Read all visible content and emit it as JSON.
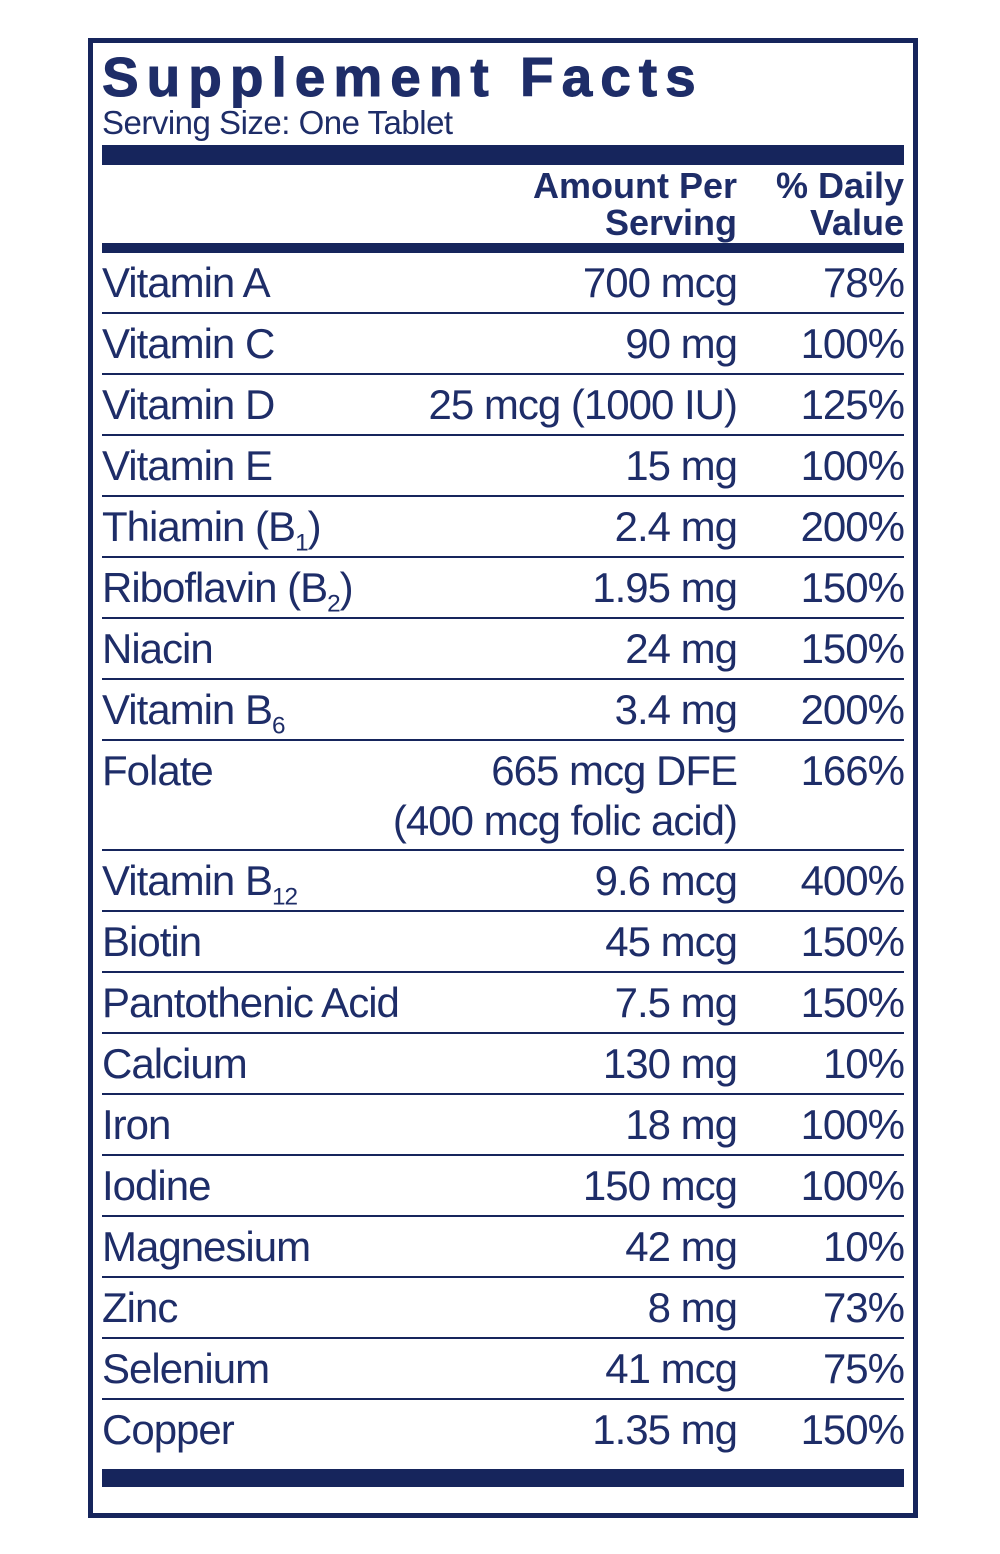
{
  "colors": {
    "navy": "#16255c",
    "text": "#1e2d68",
    "background": "#ffffff"
  },
  "label": {
    "title": "Supplement Facts",
    "serving_size": "Serving Size: One Tablet",
    "col_amount_line1": "Amount Per",
    "col_amount_line2": "Serving",
    "col_dv_line1": "% Daily",
    "col_dv_line2": "Value"
  },
  "rows": [
    {
      "name": "Vitamin A",
      "sub": "",
      "name_end": "",
      "amount": "700 mcg",
      "amount2": "",
      "dv": "78%"
    },
    {
      "name": "Vitamin C",
      "sub": "",
      "name_end": "",
      "amount": "90 mg",
      "amount2": "",
      "dv": "100%"
    },
    {
      "name": "Vitamin D",
      "sub": "",
      "name_end": "",
      "amount": "25 mcg (1000 IU)",
      "amount2": "",
      "dv": "125%"
    },
    {
      "name": "Vitamin E",
      "sub": "",
      "name_end": "",
      "amount": "15 mg",
      "amount2": "",
      "dv": "100%"
    },
    {
      "name": "Thiamin (B",
      "sub": "1",
      "name_end": ")",
      "amount": "2.4 mg",
      "amount2": "",
      "dv": "200%"
    },
    {
      "name": "Riboflavin (B",
      "sub": "2",
      "name_end": ")",
      "amount": "1.95 mg",
      "amount2": "",
      "dv": "150%"
    },
    {
      "name": "Niacin",
      "sub": "",
      "name_end": "",
      "amount": "24 mg",
      "amount2": "",
      "dv": "150%"
    },
    {
      "name": "Vitamin B",
      "sub": "6",
      "name_end": "",
      "amount": "3.4 mg",
      "amount2": "",
      "dv": "200%"
    },
    {
      "name": "Folate",
      "sub": "",
      "name_end": "",
      "amount": "665 mcg DFE",
      "amount2": "(400 mcg folic acid)",
      "dv": "166%"
    },
    {
      "name": "Vitamin B",
      "sub": "12",
      "name_end": "",
      "amount": "9.6 mcg",
      "amount2": "",
      "dv": "400%"
    },
    {
      "name": "Biotin",
      "sub": "",
      "name_end": "",
      "amount": "45 mcg",
      "amount2": "",
      "dv": "150%"
    },
    {
      "name": "Pantothenic Acid",
      "sub": "",
      "name_end": "",
      "amount": "7.5 mg",
      "amount2": "",
      "dv": "150%"
    },
    {
      "name": "Calcium",
      "sub": "",
      "name_end": "",
      "amount": "130 mg",
      "amount2": "",
      "dv": "10%"
    },
    {
      "name": "Iron",
      "sub": "",
      "name_end": "",
      "amount": "18 mg",
      "amount2": "",
      "dv": "100%"
    },
    {
      "name": "Iodine",
      "sub": "",
      "name_end": "",
      "amount": "150 mcg",
      "amount2": "",
      "dv": "100%"
    },
    {
      "name": "Magnesium",
      "sub": "",
      "name_end": "",
      "amount": "42 mg",
      "amount2": "",
      "dv": "10%"
    },
    {
      "name": "Zinc",
      "sub": "",
      "name_end": "",
      "amount": "8 mg",
      "amount2": "",
      "dv": "73%"
    },
    {
      "name": "Selenium",
      "sub": "",
      "name_end": "",
      "amount": "41 mcg",
      "amount2": "",
      "dv": "75%"
    },
    {
      "name": "Copper",
      "sub": "",
      "name_end": "",
      "amount": "1.35 mg",
      "amount2": "",
      "dv": "150%"
    }
  ]
}
